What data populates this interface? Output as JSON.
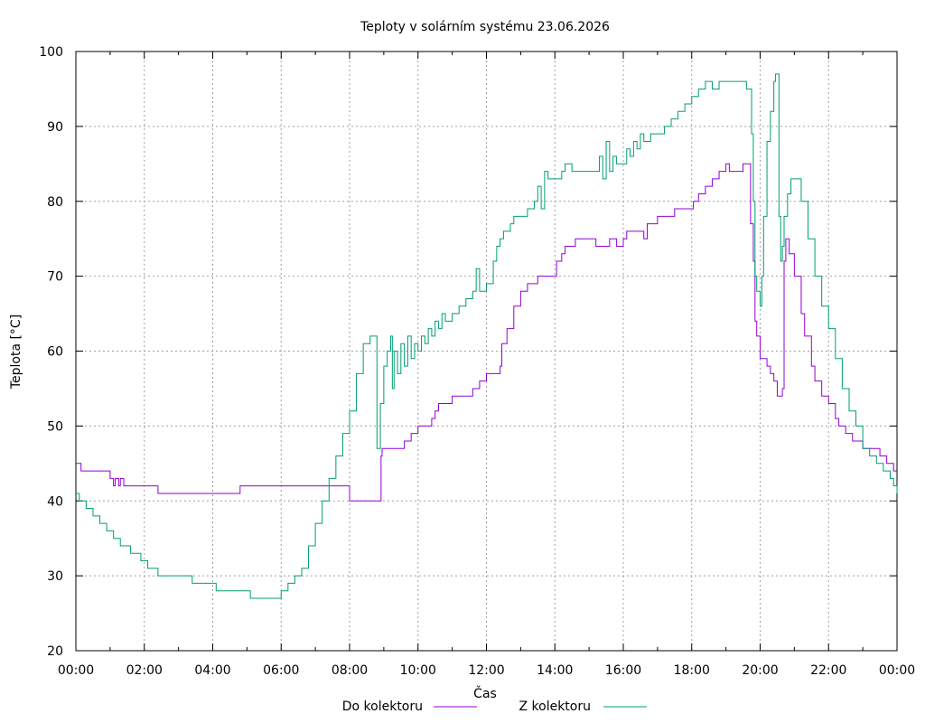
{
  "chart_data": {
    "type": "line",
    "title": "Teploty v solárním systému 23.06.2026",
    "xlabel": "Čas",
    "ylabel": "Teplota [°C]",
    "xlim": [
      0,
      24
    ],
    "ylim": [
      20,
      100
    ],
    "grid": true,
    "legend_position": "bottom-center",
    "x_ticks": [
      {
        "value": 0,
        "label": "00:00"
      },
      {
        "value": 2,
        "label": "02:00"
      },
      {
        "value": 4,
        "label": "04:00"
      },
      {
        "value": 6,
        "label": "06:00"
      },
      {
        "value": 8,
        "label": "08:00"
      },
      {
        "value": 10,
        "label": "10:00"
      },
      {
        "value": 12,
        "label": "12:00"
      },
      {
        "value": 14,
        "label": "14:00"
      },
      {
        "value": 16,
        "label": "16:00"
      },
      {
        "value": 18,
        "label": "18:00"
      },
      {
        "value": 20,
        "label": "20:00"
      },
      {
        "value": 22,
        "label": "22:00"
      },
      {
        "value": 24,
        "label": "00:00"
      }
    ],
    "y_ticks": [
      {
        "value": 20,
        "label": "20"
      },
      {
        "value": 30,
        "label": "30"
      },
      {
        "value": 40,
        "label": "40"
      },
      {
        "value": 50,
        "label": "50"
      },
      {
        "value": 60,
        "label": "60"
      },
      {
        "value": 70,
        "label": "70"
      },
      {
        "value": 80,
        "label": "80"
      },
      {
        "value": 90,
        "label": "90"
      },
      {
        "value": 100,
        "label": "100"
      }
    ],
    "series": [
      {
        "name": "Do kolektoru",
        "color": "#9400d3",
        "points": [
          [
            0.0,
            45
          ],
          [
            0.15,
            44
          ],
          [
            1.0,
            43
          ],
          [
            1.1,
            42
          ],
          [
            1.15,
            43
          ],
          [
            1.25,
            42
          ],
          [
            1.3,
            43
          ],
          [
            1.4,
            42
          ],
          [
            2.0,
            42
          ],
          [
            2.4,
            41
          ],
          [
            3.5,
            41
          ],
          [
            4.7,
            41
          ],
          [
            4.8,
            42
          ],
          [
            6.0,
            42
          ],
          [
            7.0,
            42
          ],
          [
            7.6,
            42
          ],
          [
            8.0,
            40
          ],
          [
            8.9,
            40
          ],
          [
            8.92,
            46
          ],
          [
            8.95,
            47
          ],
          [
            9.5,
            47
          ],
          [
            9.6,
            48
          ],
          [
            9.8,
            49
          ],
          [
            10.0,
            50
          ],
          [
            10.3,
            50
          ],
          [
            10.4,
            51
          ],
          [
            10.5,
            52
          ],
          [
            10.6,
            53
          ],
          [
            10.8,
            53
          ],
          [
            11.0,
            54
          ],
          [
            11.5,
            54
          ],
          [
            11.6,
            55
          ],
          [
            11.8,
            56
          ],
          [
            12.0,
            57
          ],
          [
            12.3,
            57
          ],
          [
            12.4,
            58
          ],
          [
            12.45,
            61
          ],
          [
            12.6,
            63
          ],
          [
            12.8,
            66
          ],
          [
            13.0,
            68
          ],
          [
            13.2,
            69
          ],
          [
            13.5,
            70
          ],
          [
            14.0,
            70
          ],
          [
            14.05,
            72
          ],
          [
            14.2,
            73
          ],
          [
            14.3,
            74
          ],
          [
            14.5,
            74
          ],
          [
            14.6,
            75
          ],
          [
            15.0,
            75
          ],
          [
            15.2,
            74
          ],
          [
            15.5,
            74
          ],
          [
            15.6,
            75
          ],
          [
            15.8,
            74
          ],
          [
            16.0,
            75
          ],
          [
            16.1,
            76
          ],
          [
            16.5,
            76
          ],
          [
            16.6,
            75
          ],
          [
            16.7,
            77
          ],
          [
            17.0,
            78
          ],
          [
            17.4,
            78
          ],
          [
            17.5,
            79
          ],
          [
            18.0,
            79
          ],
          [
            18.05,
            80
          ],
          [
            18.2,
            81
          ],
          [
            18.4,
            82
          ],
          [
            18.6,
            83
          ],
          [
            18.8,
            84
          ],
          [
            19.0,
            85
          ],
          [
            19.1,
            84
          ],
          [
            19.5,
            85
          ],
          [
            19.7,
            85
          ],
          [
            19.72,
            77
          ],
          [
            19.8,
            72
          ],
          [
            19.85,
            64
          ],
          [
            19.9,
            62
          ],
          [
            20.0,
            59
          ],
          [
            20.2,
            58
          ],
          [
            20.3,
            57
          ],
          [
            20.4,
            56
          ],
          [
            20.5,
            54
          ],
          [
            20.6,
            54
          ],
          [
            20.65,
            55
          ],
          [
            20.7,
            72
          ],
          [
            20.75,
            75
          ],
          [
            20.85,
            73
          ],
          [
            21.0,
            70
          ],
          [
            21.2,
            65
          ],
          [
            21.3,
            62
          ],
          [
            21.5,
            58
          ],
          [
            21.6,
            56
          ],
          [
            21.8,
            54
          ],
          [
            22.0,
            53
          ],
          [
            22.2,
            51
          ],
          [
            22.3,
            50
          ],
          [
            22.5,
            49
          ],
          [
            22.7,
            48
          ],
          [
            23.0,
            47
          ],
          [
            23.3,
            47
          ],
          [
            23.5,
            46
          ],
          [
            23.6,
            46
          ],
          [
            23.7,
            45
          ],
          [
            23.8,
            45
          ],
          [
            23.9,
            44
          ],
          [
            24.0,
            44
          ]
        ]
      },
      {
        "name": "Z kolektoru",
        "color": "#009e73",
        "points": [
          [
            0.0,
            41
          ],
          [
            0.1,
            40
          ],
          [
            0.3,
            39
          ],
          [
            0.5,
            38
          ],
          [
            0.7,
            37
          ],
          [
            0.9,
            36
          ],
          [
            1.1,
            35
          ],
          [
            1.3,
            34
          ],
          [
            1.6,
            33
          ],
          [
            1.9,
            32
          ],
          [
            2.1,
            31
          ],
          [
            2.4,
            30
          ],
          [
            3.0,
            30
          ],
          [
            3.4,
            29
          ],
          [
            4.0,
            29
          ],
          [
            4.1,
            28
          ],
          [
            4.5,
            28
          ],
          [
            5.0,
            28
          ],
          [
            5.1,
            27
          ],
          [
            5.5,
            27
          ],
          [
            5.9,
            27
          ],
          [
            6.0,
            28
          ],
          [
            6.2,
            29
          ],
          [
            6.4,
            30
          ],
          [
            6.6,
            31
          ],
          [
            6.8,
            34
          ],
          [
            7.0,
            37
          ],
          [
            7.2,
            40
          ],
          [
            7.4,
            43
          ],
          [
            7.6,
            46
          ],
          [
            7.8,
            49
          ],
          [
            8.0,
            52
          ],
          [
            8.2,
            57
          ],
          [
            8.4,
            61
          ],
          [
            8.6,
            62
          ],
          [
            8.75,
            62
          ],
          [
            8.8,
            47
          ],
          [
            8.9,
            53
          ],
          [
            9.0,
            58
          ],
          [
            9.1,
            60
          ],
          [
            9.2,
            62
          ],
          [
            9.25,
            55
          ],
          [
            9.3,
            60
          ],
          [
            9.4,
            57
          ],
          [
            9.5,
            61
          ],
          [
            9.6,
            58
          ],
          [
            9.7,
            62
          ],
          [
            9.8,
            59
          ],
          [
            9.9,
            61
          ],
          [
            10.0,
            60
          ],
          [
            10.1,
            62
          ],
          [
            10.2,
            61
          ],
          [
            10.3,
            63
          ],
          [
            10.4,
            62
          ],
          [
            10.5,
            64
          ],
          [
            10.6,
            63
          ],
          [
            10.7,
            65
          ],
          [
            10.8,
            64
          ],
          [
            11.0,
            65
          ],
          [
            11.2,
            66
          ],
          [
            11.4,
            67
          ],
          [
            11.6,
            68
          ],
          [
            11.7,
            71
          ],
          [
            11.8,
            68
          ],
          [
            12.0,
            69
          ],
          [
            12.2,
            72
          ],
          [
            12.3,
            74
          ],
          [
            12.4,
            75
          ],
          [
            12.5,
            76
          ],
          [
            12.7,
            77
          ],
          [
            12.8,
            78
          ],
          [
            13.0,
            78
          ],
          [
            13.2,
            79
          ],
          [
            13.4,
            80
          ],
          [
            13.5,
            82
          ],
          [
            13.6,
            79
          ],
          [
            13.7,
            84
          ],
          [
            13.8,
            83
          ],
          [
            14.0,
            83
          ],
          [
            14.2,
            84
          ],
          [
            14.3,
            85
          ],
          [
            14.5,
            84
          ],
          [
            14.8,
            84
          ],
          [
            15.0,
            84
          ],
          [
            15.2,
            84
          ],
          [
            15.3,
            86
          ],
          [
            15.4,
            83
          ],
          [
            15.5,
            88
          ],
          [
            15.6,
            84
          ],
          [
            15.7,
            86
          ],
          [
            15.8,
            85
          ],
          [
            16.0,
            85
          ],
          [
            16.1,
            87
          ],
          [
            16.2,
            86
          ],
          [
            16.3,
            88
          ],
          [
            16.4,
            87
          ],
          [
            16.5,
            89
          ],
          [
            16.6,
            88
          ],
          [
            16.8,
            89
          ],
          [
            17.0,
            89
          ],
          [
            17.2,
            90
          ],
          [
            17.4,
            91
          ],
          [
            17.6,
            92
          ],
          [
            17.8,
            93
          ],
          [
            18.0,
            94
          ],
          [
            18.2,
            95
          ],
          [
            18.4,
            96
          ],
          [
            18.6,
            95
          ],
          [
            18.8,
            96
          ],
          [
            19.0,
            96
          ],
          [
            19.2,
            96
          ],
          [
            19.5,
            96
          ],
          [
            19.6,
            95
          ],
          [
            19.75,
            89
          ],
          [
            19.8,
            80
          ],
          [
            19.85,
            70
          ],
          [
            19.9,
            68
          ],
          [
            20.0,
            66
          ],
          [
            20.05,
            70
          ],
          [
            20.1,
            78
          ],
          [
            20.2,
            88
          ],
          [
            20.3,
            92
          ],
          [
            20.4,
            96
          ],
          [
            20.45,
            97
          ],
          [
            20.5,
            97
          ],
          [
            20.55,
            78
          ],
          [
            20.6,
            72
          ],
          [
            20.65,
            74
          ],
          [
            20.7,
            78
          ],
          [
            20.8,
            81
          ],
          [
            20.9,
            83
          ],
          [
            21.0,
            83
          ],
          [
            21.2,
            80
          ],
          [
            21.4,
            75
          ],
          [
            21.6,
            70
          ],
          [
            21.8,
            66
          ],
          [
            22.0,
            63
          ],
          [
            22.2,
            59
          ],
          [
            22.4,
            55
          ],
          [
            22.6,
            52
          ],
          [
            22.8,
            50
          ],
          [
            23.0,
            47
          ],
          [
            23.2,
            46
          ],
          [
            23.4,
            45
          ],
          [
            23.5,
            45
          ],
          [
            23.6,
            44
          ],
          [
            23.8,
            43
          ],
          [
            23.9,
            42
          ],
          [
            24.0,
            41
          ]
        ]
      }
    ]
  }
}
